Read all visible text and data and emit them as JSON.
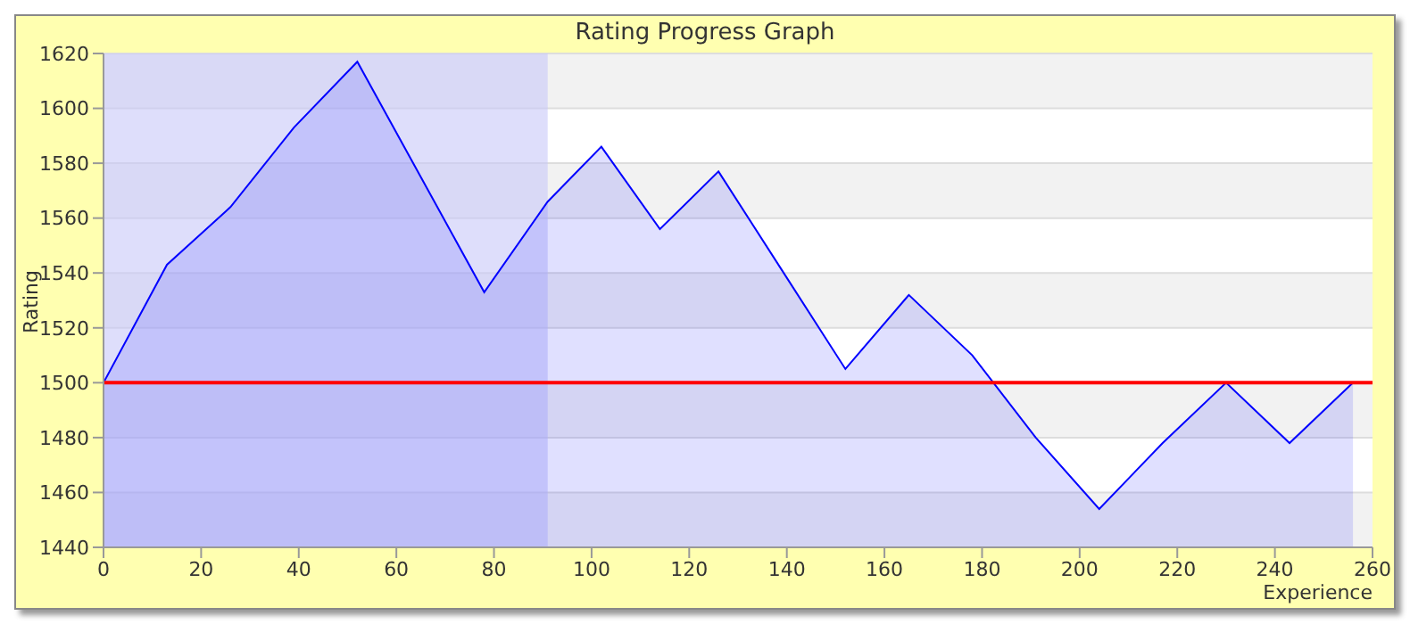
{
  "chart_data": {
    "type": "area",
    "title": "Rating Progress Graph",
    "xlabel": "Experience",
    "ylabel": "Rating",
    "x": [
      0,
      13,
      26,
      39,
      52,
      65,
      78,
      91,
      102,
      114,
      126,
      139,
      152,
      165,
      178,
      191,
      204,
      217,
      230,
      243,
      256
    ],
    "series": [
      {
        "color": "#0000ff",
        "values": [
          1500,
          1543,
          1564,
          1593,
          1617,
          1575,
          1533,
          1566,
          1586,
          1556,
          1577,
          1541,
          1505,
          1532,
          1510,
          1480,
          1454,
          1478,
          1500,
          1478,
          1500
        ]
      }
    ],
    "xlim": [
      0,
      260
    ],
    "xticks": [
      0,
      20,
      40,
      60,
      80,
      100,
      120,
      140,
      160,
      180,
      200,
      220,
      240,
      260
    ],
    "ylim": [
      1440,
      1620
    ],
    "yticks": [
      1440,
      1460,
      1480,
      1500,
      1520,
      1540,
      1560,
      1580,
      1600,
      1620
    ],
    "grid": "y",
    "ref_lines": [
      {
        "axis": "y",
        "value": 1500,
        "color": "#ff0000"
      }
    ],
    "bands": [
      {
        "axis": "x",
        "from": 0,
        "to": 91,
        "color": "#c8c8f8"
      }
    ]
  }
}
